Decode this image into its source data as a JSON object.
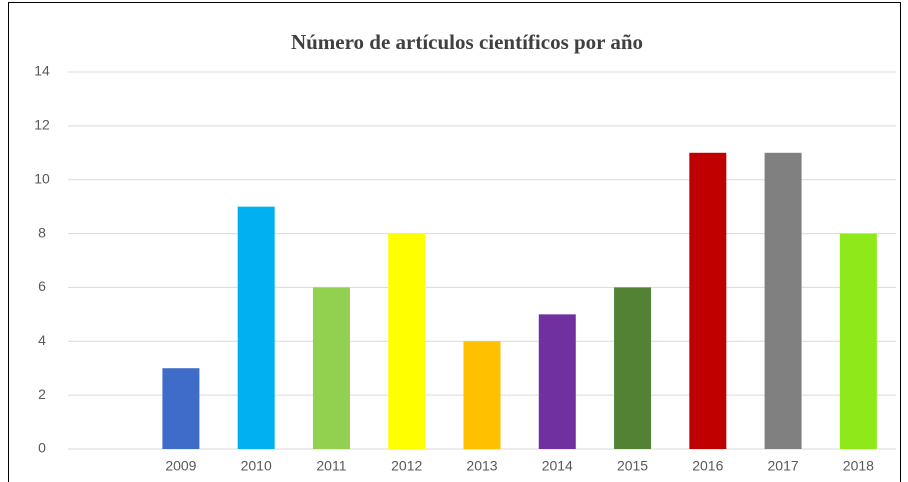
{
  "chart_data": {
    "type": "bar",
    "title": "Número de artículos científicos por año",
    "categories": [
      null,
      "2009",
      "2010",
      "2011",
      "2012",
      "2013",
      "2014",
      "2015",
      "2016",
      "2017",
      "2018"
    ],
    "values": [
      null,
      3,
      9,
      6,
      8,
      4,
      5,
      6,
      11,
      11,
      8
    ],
    "colors": [
      null,
      "#3f6cc8",
      "#00b0f0",
      "#92d050",
      "#ffff00",
      "#ffc000",
      "#7030a0",
      "#548235",
      "#c00000",
      "#808080",
      "#8fe81a"
    ],
    "ylim": [
      0,
      14
    ],
    "yticks": [
      0,
      2,
      4,
      6,
      8,
      10,
      12,
      14
    ],
    "grid": true
  }
}
